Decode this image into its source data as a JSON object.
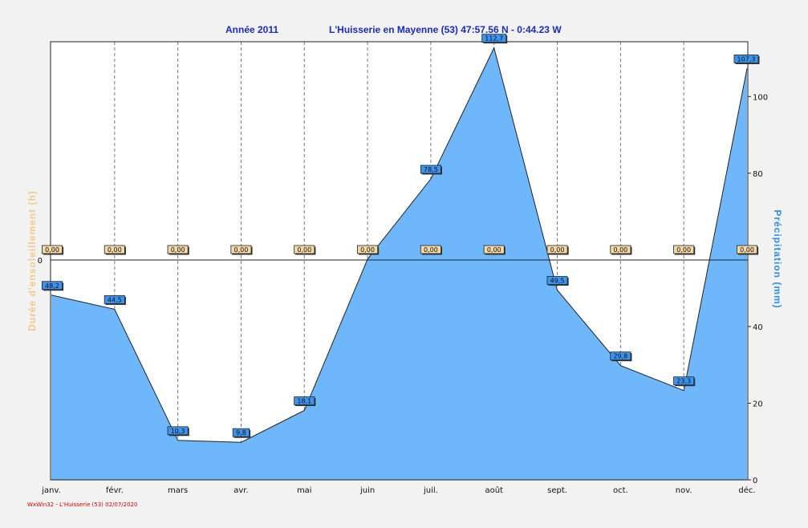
{
  "title": {
    "year_label": "Année  2011",
    "station": "L'Huisserie en Mayenne (53) 47:57.56 N - 0:44.23 W"
  },
  "footer": "WxWin32 - L'Huisserie (53)  02/07/2020",
  "colors": {
    "background": "#f2f2f2",
    "plot_bg": "#ffffff",
    "area_fill": "#6fb7fb",
    "area_line": "#222222",
    "title": "#1a2bbf",
    "left_axis_label": "#f3c98c",
    "right_axis_label": "#2b8fe6",
    "precip_label_bg": "#3d94f0",
    "sun_label_bg": "#f4d9a6"
  },
  "chart_data": {
    "type": "area",
    "categories": [
      "janv.",
      "févr.",
      "mars",
      "avr.",
      "mai",
      "juin",
      "juil.",
      "août",
      "sept.",
      "oct.",
      "nov.",
      "déc."
    ],
    "series": [
      {
        "name": "Précipitation  (mm)",
        "axis": "right",
        "values": [
          48.2,
          44.5,
          10.3,
          9.8,
          18.1,
          57.6,
          78.5,
          112.7,
          49.5,
          29.8,
          23.3,
          107.3
        ],
        "labels": [
          "48,2",
          "44,5",
          "10,3",
          "9,8",
          "18,1",
          "57,6",
          "78,5",
          "112,7",
          "49,5",
          "29,8",
          "23,3",
          "107,3"
        ]
      },
      {
        "name": "Durée d'ensoleillement  (h)",
        "axis": "left",
        "values": [
          0,
          0,
          0,
          0,
          0,
          0,
          0,
          0,
          0,
          0,
          0,
          0
        ],
        "labels": [
          "0,00",
          "0,00",
          "0,00",
          "0,00",
          "0,00",
          "0,00",
          "0,00",
          "0,00",
          "0,00",
          "0,00",
          "0,00",
          "0,00"
        ]
      }
    ],
    "y_right": {
      "label": "Précipitation  (mm)",
      "range": [
        0,
        114.3
      ],
      "ticks": [
        0,
        20,
        40,
        60,
        80,
        100
      ],
      "tick_labels": [
        "0",
        "20",
        "40",
        "",
        "80",
        "100"
      ]
    },
    "y_left": {
      "label": "Durée d'ensoleillement  (h)",
      "ticks": [
        0
      ],
      "tick_labels": [
        "0"
      ]
    },
    "grid": "vertical-dashed",
    "legend": "none"
  }
}
